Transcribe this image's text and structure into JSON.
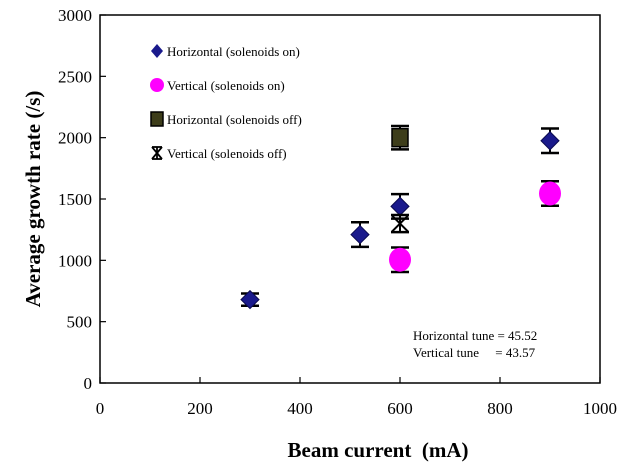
{
  "chart_data": {
    "type": "scatter",
    "xlabel": "Beam current  (mA)",
    "ylabel": "Average growth rate (/s)",
    "xlim": [
      0,
      1000
    ],
    "ylim": [
      0,
      3000
    ],
    "x_ticks": [
      "0",
      "200",
      "400",
      "600",
      "800",
      "1000"
    ],
    "y_ticks": [
      "0",
      "500",
      "1000",
      "1500",
      "2000",
      "2500",
      "3000"
    ],
    "grid": false,
    "legend_position": "top-left",
    "series": [
      {
        "name": "Horizontal (solenoids on)",
        "marker": "diamond",
        "color": "#1a1a8c",
        "points": [
          {
            "x": 300,
            "y": 680,
            "err": 50
          },
          {
            "x": 520,
            "y": 1210,
            "err": 100
          },
          {
            "x": 600,
            "y": 1440,
            "err": 100
          },
          {
            "x": 900,
            "y": 1975,
            "err": 100
          }
        ]
      },
      {
        "name": "Vertical (solenoids on)",
        "marker": "circle",
        "color": "#ff00ff",
        "points": [
          {
            "x": 600,
            "y": 1005,
            "err": 100
          },
          {
            "x": 900,
            "y": 1545,
            "err": 100
          }
        ]
      },
      {
        "name": "Horizontal (solenoids off)",
        "marker": "square",
        "color": "#3d3d1a",
        "points": [
          {
            "x": 600,
            "y": 2000,
            "err": 95
          }
        ]
      },
      {
        "name": "Vertical (solenoids off)",
        "marker": "star",
        "color": "#000000",
        "points": [
          {
            "x": 600,
            "y": 1300,
            "err": 70
          }
        ]
      }
    ],
    "annotations": [
      "Horizontal tune = 45.52",
      "Vertical tune     = 43.57"
    ]
  }
}
